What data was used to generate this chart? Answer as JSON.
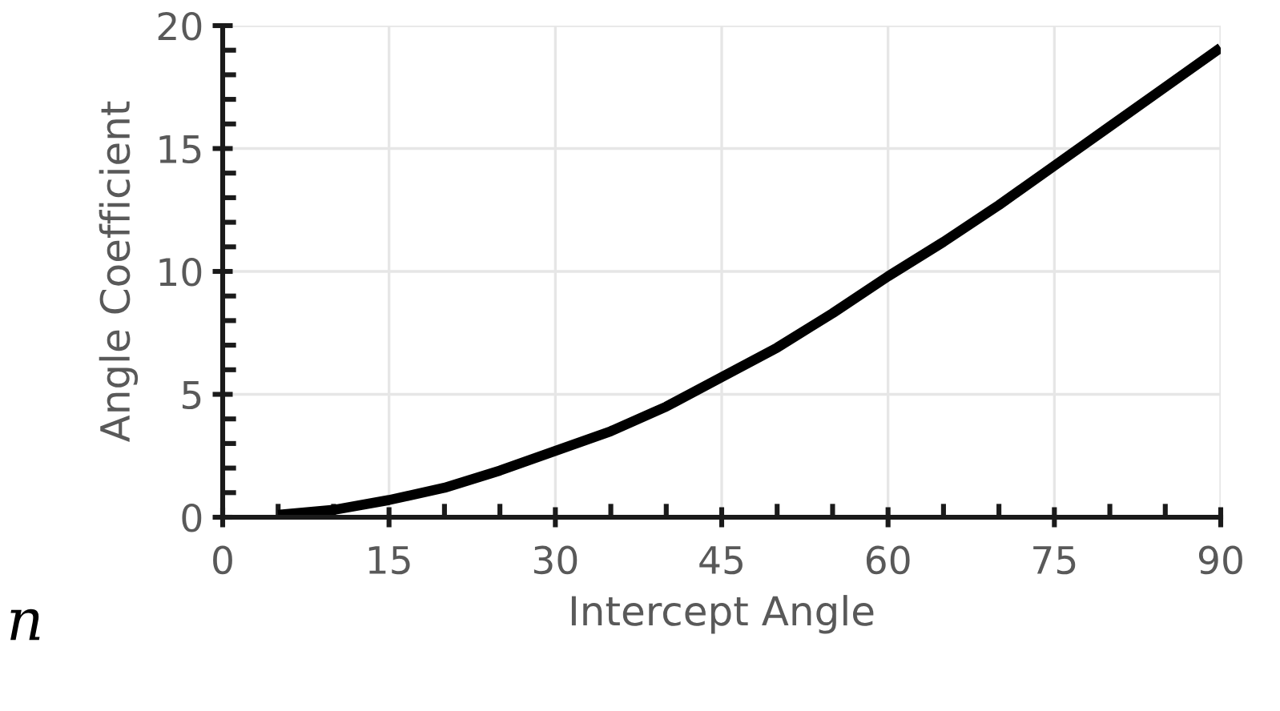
{
  "chart_data": {
    "type": "line",
    "xlabel": "Intercept Angle",
    "ylabel": "Angle Coefficient",
    "x": [
      5,
      10,
      15,
      20,
      25,
      30,
      35,
      40,
      45,
      50,
      55,
      60,
      65,
      70,
      75,
      80,
      85,
      90
    ],
    "series": [
      {
        "color": "#000000",
        "values": [
          0.1,
          0.3,
          0.7,
          1.2,
          1.9,
          2.7,
          3.5,
          4.5,
          5.7,
          6.9,
          8.3,
          9.8,
          11.2,
          12.7,
          14.3,
          15.9,
          17.5,
          19.1
        ]
      }
    ],
    "xlim": [
      0,
      90
    ],
    "ylim": [
      0,
      20
    ],
    "xticks": [
      0,
      {
        "value": 5,
        "label": null
      },
      {
        "value": 10,
        "label": null
      },
      15,
      {
        "value": 20,
        "label": null
      },
      {
        "value": 25,
        "label": null
      },
      30,
      {
        "value": 35,
        "label": null
      },
      {
        "value": 40,
        "label": null
      },
      45,
      {
        "value": 50,
        "label": null
      },
      {
        "value": 55,
        "label": null
      },
      60,
      {
        "value": 65,
        "label": null
      },
      {
        "value": 70,
        "label": null
      },
      75,
      {
        "value": 80,
        "label": null
      },
      {
        "value": 85,
        "label": null
      },
      90
    ],
    "yticks": [
      0,
      {
        "value": 1,
        "label": null
      },
      {
        "value": 2,
        "label": null
      },
      {
        "value": 3,
        "label": null
      },
      {
        "value": 4,
        "label": null
      },
      5,
      {
        "value": 6,
        "label": null
      },
      {
        "value": 7,
        "label": null
      },
      {
        "value": 8,
        "label": null
      },
      {
        "value": 9,
        "label": null
      },
      10,
      {
        "value": 11,
        "label": null
      },
      {
        "value": 12,
        "label": null
      },
      {
        "value": 13,
        "label": null
      },
      {
        "value": 14,
        "label": null
      },
      15,
      {
        "value": 16,
        "label": null
      },
      {
        "value": 17,
        "label": null
      },
      {
        "value": 18,
        "label": null
      },
      {
        "value": 19,
        "label": null
      },
      20
    ],
    "grid": true,
    "marker": "none",
    "line_style": "solid",
    "annotations": [
      "n"
    ]
  }
}
